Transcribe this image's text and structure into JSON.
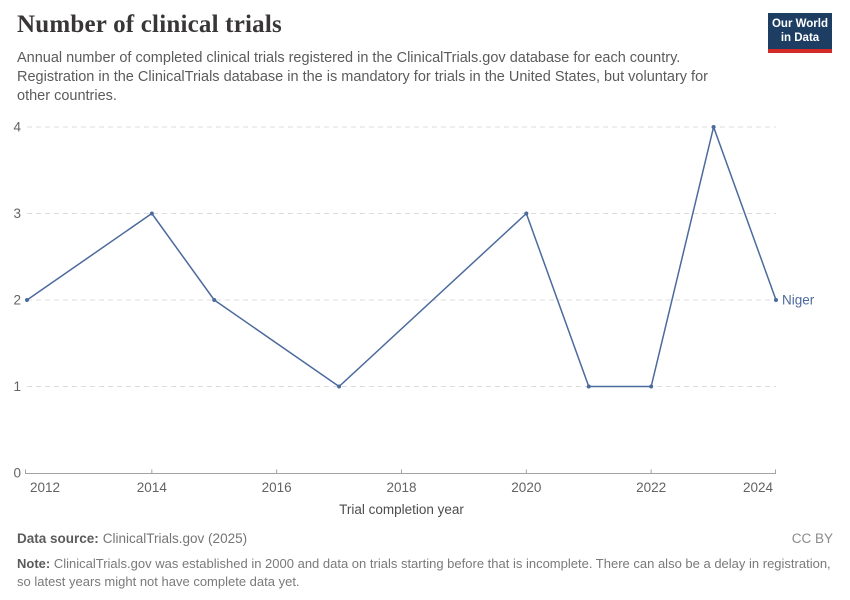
{
  "header": {
    "title": "Number of clinical trials",
    "subtitle_lines": [
      "Annual number of completed clinical trials registered in the ClinicalTrials.gov database for each country.",
      "Registration in the ClinicalTrials database in the is mandatory for trials in the United States, but voluntary for",
      "other countries."
    ],
    "logo_lines": [
      "Our World",
      "in Data"
    ]
  },
  "chart_data": {
    "type": "line",
    "title": "Number of clinical trials",
    "xlabel": "Trial completion year",
    "ylabel": "",
    "xlim": [
      2012,
      2024
    ],
    "ylim": [
      0,
      4
    ],
    "xticks": [
      2012,
      2014,
      2016,
      2018,
      2020,
      2022,
      2024
    ],
    "yticks": [
      0,
      1,
      2,
      3,
      4
    ],
    "grid": "horizontal-dashed",
    "legend_position": "line-end-label",
    "series": [
      {
        "name": "Niger",
        "color": "#4C6A9C",
        "x": [
          2012,
          2014,
          2015,
          2017,
          2020,
          2021,
          2022,
          2023,
          2024
        ],
        "values": [
          2,
          3,
          2,
          1,
          3,
          1,
          1,
          4,
          2
        ]
      }
    ]
  },
  "footer": {
    "datasource_label": "Data source:",
    "datasource_value": "ClinicalTrials.gov (2025)",
    "license": "CC BY",
    "note_label": "Note:",
    "note_lines": [
      "ClinicalTrials.gov was established in 2000 and data on trials starting before that is incomplete. There can also be a delay in registration,",
      "so latest years might not have complete data yet."
    ]
  },
  "colors": {
    "line": "#4C6A9C",
    "grid": "#dcdcdc",
    "axis": "#a3a3a3",
    "tick_text": "#636363",
    "logo_bg": "#1d3d63",
    "logo_red": "#d22a27"
  }
}
